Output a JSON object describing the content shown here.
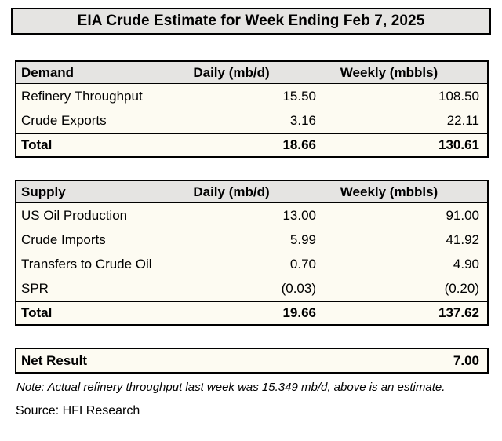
{
  "title": "EIA Crude Estimate for Week Ending Feb 7, 2025",
  "demand_table": {
    "header": {
      "label": "Demand",
      "daily": "Daily (mb/d)",
      "weekly": "Weekly (mbbls)"
    },
    "rows": [
      {
        "label": "Refinery Throughput",
        "daily": "15.50",
        "weekly": "108.50"
      },
      {
        "label": "Crude Exports",
        "daily": "3.16",
        "weekly": "22.11"
      }
    ],
    "total": {
      "label": "Total",
      "daily": "18.66",
      "weekly": "130.61"
    }
  },
  "supply_table": {
    "header": {
      "label": "Supply",
      "daily": "Daily (mb/d)",
      "weekly": "Weekly (mbbls)"
    },
    "rows": [
      {
        "label": "US Oil Production",
        "daily": "13.00",
        "weekly": "91.00"
      },
      {
        "label": "Crude Imports",
        "daily": "5.99",
        "weekly": "41.92"
      },
      {
        "label": "Transfers to Crude Oil",
        "daily": "0.70",
        "weekly": "4.90"
      },
      {
        "label": "SPR",
        "daily": "(0.03)",
        "weekly": "(0.20)"
      }
    ],
    "total": {
      "label": "Total",
      "daily": "19.66",
      "weekly": "137.62"
    }
  },
  "net_result": {
    "label": "Net Result",
    "value": "7.00"
  },
  "note": "Note: Actual refinery throughput last week was 15.349 mb/d, above is an estimate.",
  "source": "Source: HFI Research",
  "colors": {
    "header_bg": "#e5e4e2",
    "row_bg": "#fdfbf2",
    "border": "#000000",
    "text": "#000000",
    "page_bg": "#ffffff"
  }
}
